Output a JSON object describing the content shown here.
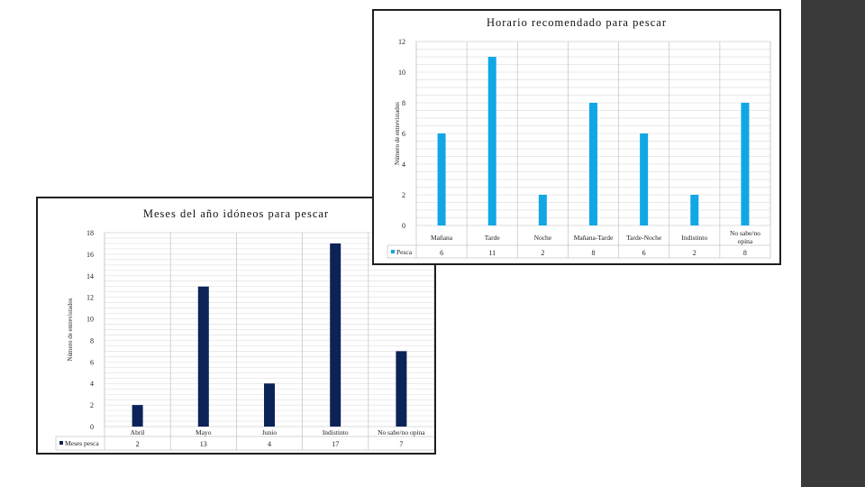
{
  "chart_data": [
    {
      "id": "months",
      "type": "bar",
      "title": "Meses del año idóneos para pescar",
      "ylabel": "Número de entrevistados",
      "categories": [
        "Abril",
        "Mayo",
        "Junio",
        "Indistinto",
        "No sabe/no opina"
      ],
      "series": [
        {
          "name": "Meses pesca",
          "values": [
            2,
            13,
            4,
            17,
            7
          ],
          "color": "#0c2357"
        }
      ],
      "ylim": [
        0,
        18
      ],
      "yticks": [
        0,
        2,
        4,
        6,
        8,
        10,
        12,
        14,
        16,
        18
      ],
      "grid": true,
      "legend": "data-table"
    },
    {
      "id": "time",
      "type": "bar",
      "title": "Horario recomendado para pescar",
      "ylabel": "Número de entrevistados",
      "categories": [
        "Mañana",
        "Tarde",
        "Noche",
        "Mañana-Tarde",
        "Tarde-Noche",
        "Indistinto",
        "No sabe/no opina"
      ],
      "series": [
        {
          "name": "Pesca",
          "values": [
            6,
            11,
            2,
            8,
            6,
            2,
            8
          ],
          "color": "#11a7e4"
        }
      ],
      "ylim": [
        0,
        12
      ],
      "yticks": [
        0,
        2,
        4,
        6,
        8,
        10,
        12
      ],
      "grid": true,
      "legend": "data-table"
    }
  ]
}
